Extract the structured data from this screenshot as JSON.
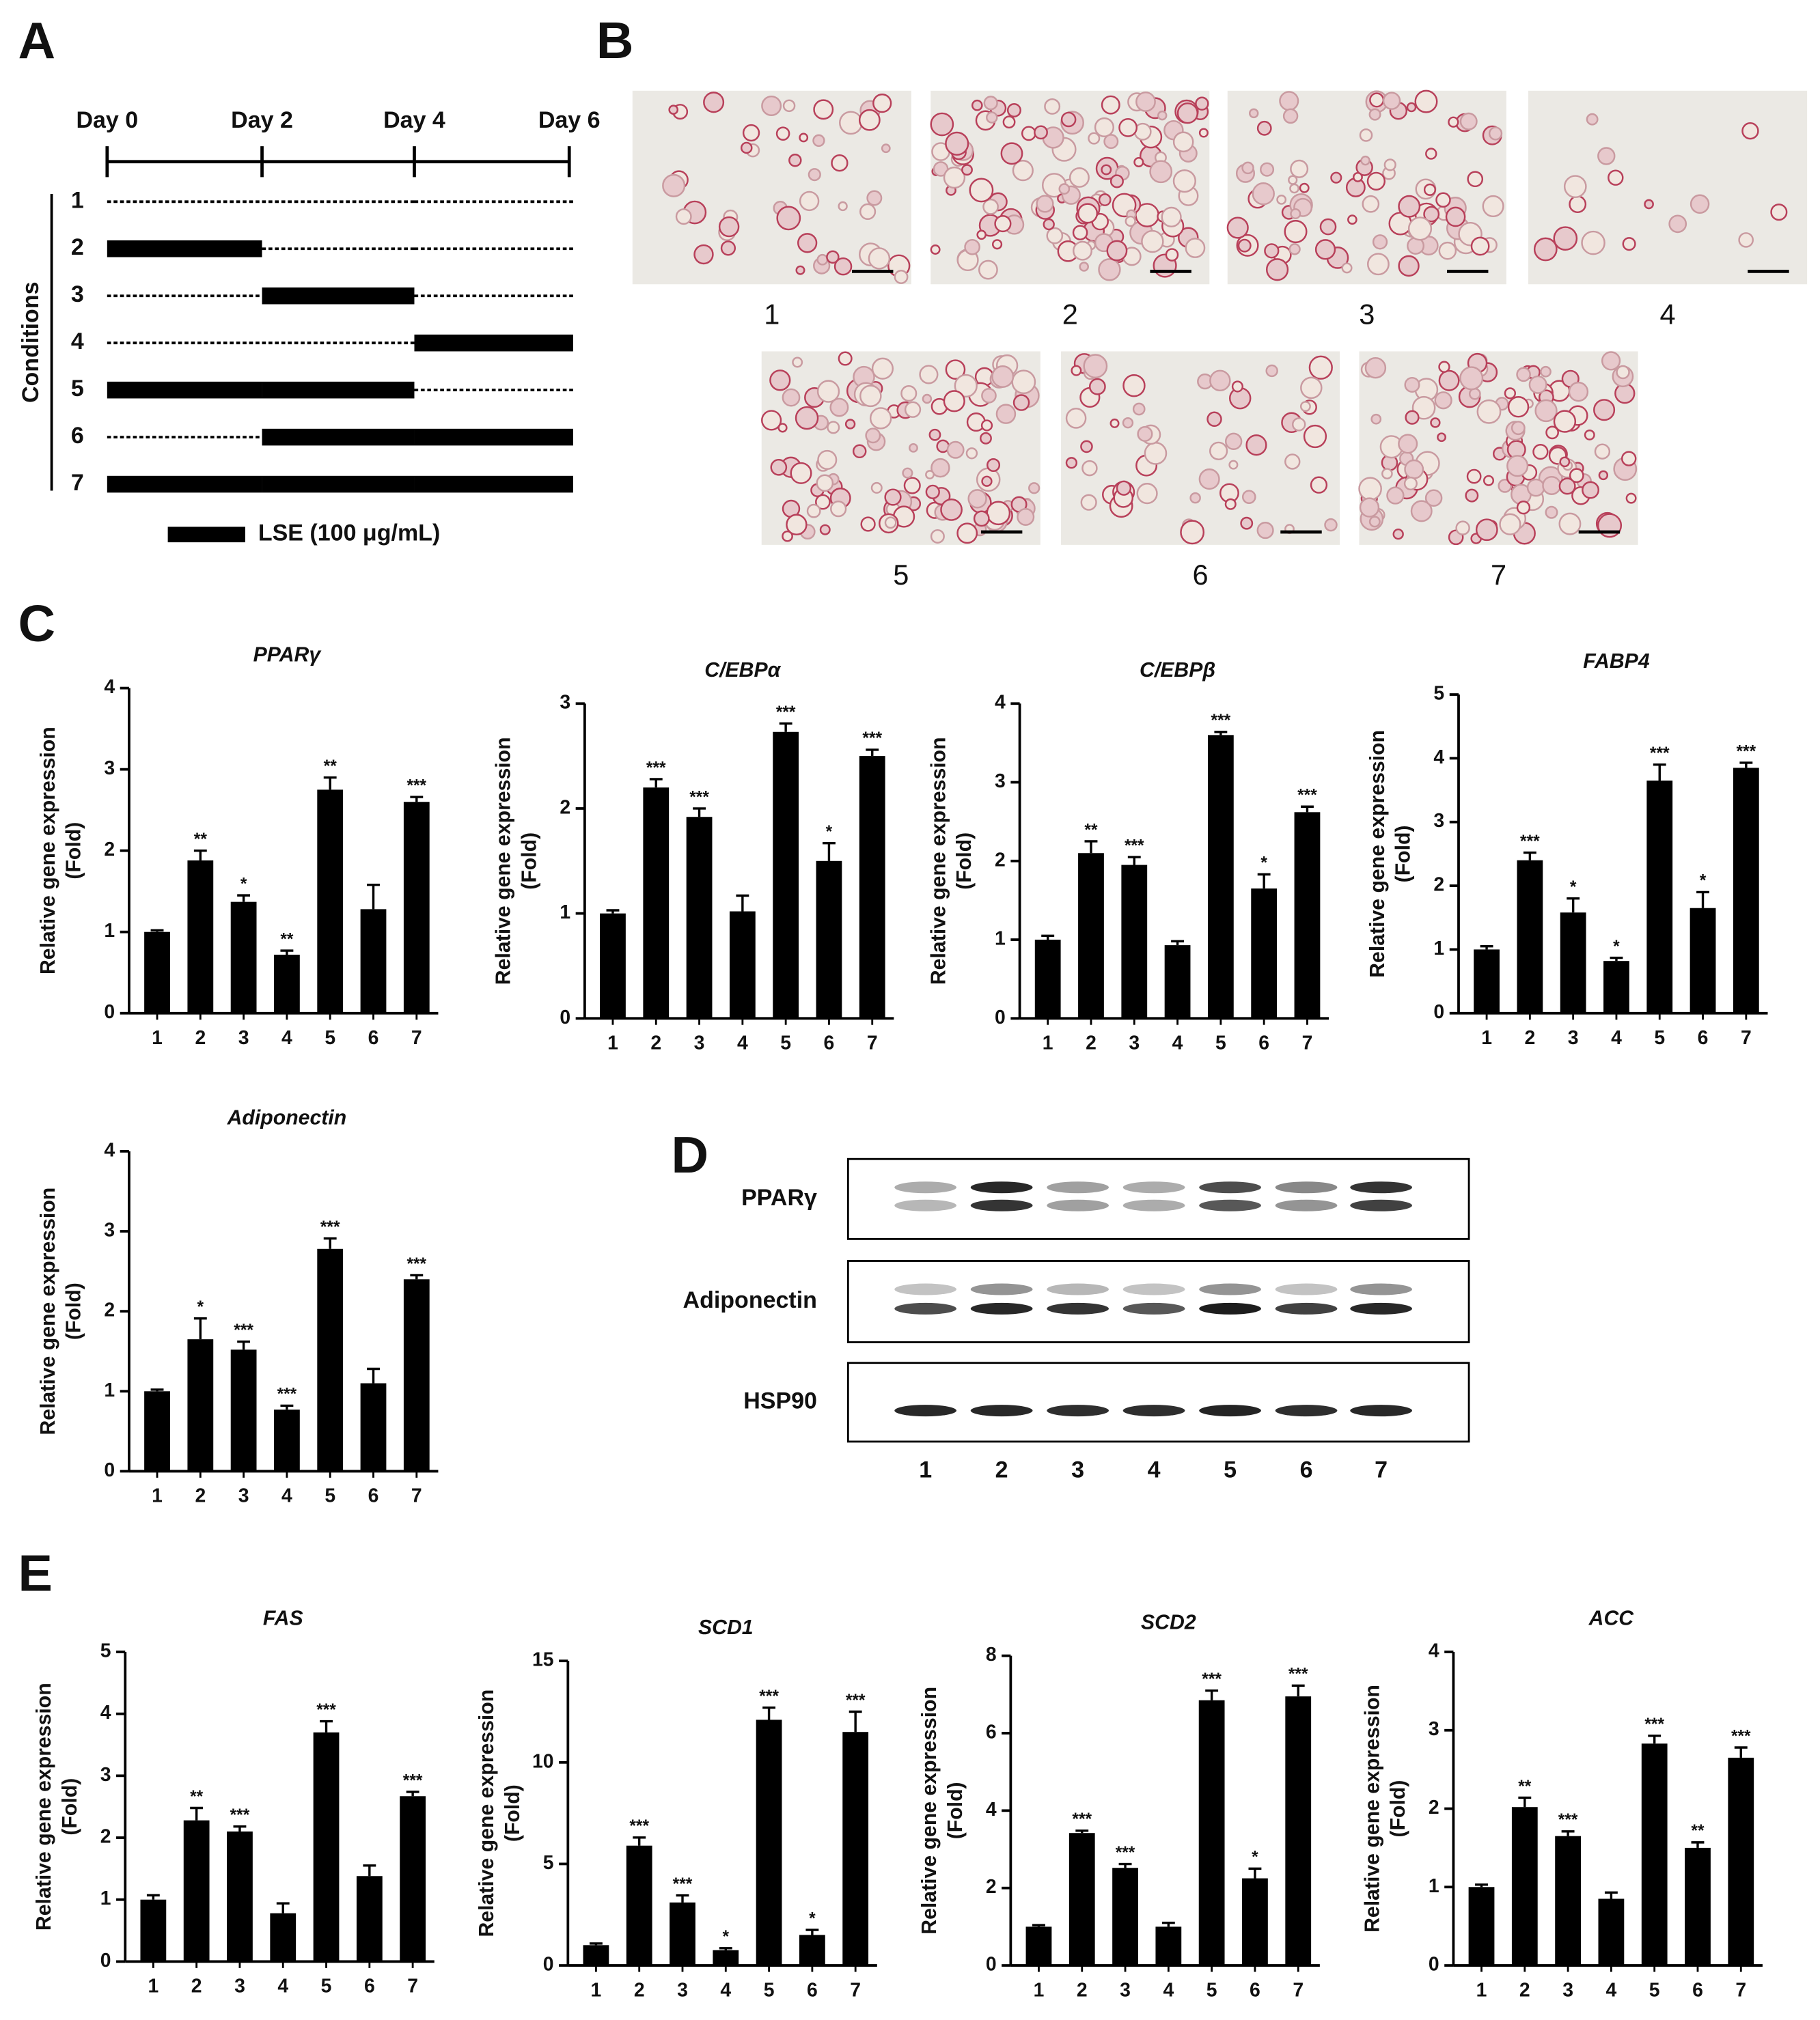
{
  "panel_labels": [
    "A",
    "B",
    "C",
    "D",
    "E"
  ],
  "timeline": {
    "days": [
      "Day 0",
      "Day 2",
      "Day 4",
      "Day 6"
    ],
    "axis_label": "Conditions",
    "conditions": [
      {
        "label": "1",
        "treated": [
          false,
          false,
          false
        ]
      },
      {
        "label": "2",
        "treated": [
          true,
          false,
          false
        ]
      },
      {
        "label": "3",
        "treated": [
          false,
          true,
          false
        ]
      },
      {
        "label": "4",
        "treated": [
          false,
          false,
          true
        ]
      },
      {
        "label": "5",
        "treated": [
          true,
          true,
          false
        ]
      },
      {
        "label": "6",
        "treated": [
          false,
          true,
          true
        ]
      },
      {
        "label": "7",
        "treated": [
          true,
          true,
          true
        ]
      }
    ],
    "legend": "LSE (100 μg/mL)"
  },
  "images": {
    "labels": [
      "1",
      "2",
      "3",
      "4",
      "5",
      "6",
      "7"
    ]
  },
  "blot": {
    "proteins": [
      "PPARγ",
      "Adiponectin",
      "HSP90"
    ],
    "lanes": [
      "1",
      "2",
      "3",
      "4",
      "5",
      "6",
      "7"
    ]
  },
  "chart_data": [
    {
      "type": "bar",
      "title": "PPARγ",
      "ylabel": [
        "Relative gene expression",
        "(Fold)"
      ],
      "categories": [
        "1",
        "2",
        "3",
        "4",
        "5",
        "6",
        "7"
      ],
      "color": "#000000",
      "values": [
        1.0,
        1.88,
        1.37,
        0.72,
        2.75,
        1.28,
        2.6
      ],
      "errors": [
        0.02,
        0.12,
        0.08,
        0.05,
        0.15,
        0.3,
        0.06
      ],
      "annotations": [
        null,
        "**",
        "*",
        "**",
        "**",
        null,
        "***"
      ],
      "ylim": [
        0,
        4
      ],
      "yticks": [
        0,
        1,
        2,
        3,
        4
      ]
    },
    {
      "type": "bar",
      "title": "C/EBPα",
      "ylabel": [
        "Relative gene expression",
        "(Fold)"
      ],
      "categories": [
        "1",
        "2",
        "3",
        "4",
        "5",
        "6",
        "7"
      ],
      "color": "#000000",
      "values": [
        1.0,
        2.2,
        1.92,
        1.02,
        2.73,
        1.5,
        2.5
      ],
      "errors": [
        0.03,
        0.08,
        0.08,
        0.15,
        0.08,
        0.17,
        0.06
      ],
      "annotations": [
        null,
        "***",
        "***",
        null,
        "***",
        "*",
        "***"
      ],
      "ylim": [
        0,
        3
      ],
      "yticks": [
        0,
        1,
        2,
        3
      ]
    },
    {
      "type": "bar",
      "title": "C/EBPβ",
      "ylabel": [
        "Relative gene expression",
        "(Fold)"
      ],
      "categories": [
        "1",
        "2",
        "3",
        "4",
        "5",
        "6",
        "7"
      ],
      "color": "#000000",
      "values": [
        1.0,
        2.1,
        1.95,
        0.93,
        3.6,
        1.65,
        2.62
      ],
      "errors": [
        0.05,
        0.15,
        0.1,
        0.05,
        0.04,
        0.18,
        0.07
      ],
      "annotations": [
        null,
        "**",
        "***",
        null,
        "***",
        "*",
        "***"
      ],
      "ylim": [
        0,
        4
      ],
      "yticks": [
        0,
        1,
        2,
        3,
        4
      ]
    },
    {
      "type": "bar",
      "title": "FABP4",
      "ylabel": [
        "Relative gene expression",
        "(Fold)"
      ],
      "categories": [
        "1",
        "2",
        "3",
        "4",
        "5",
        "6",
        "7"
      ],
      "color": "#000000",
      "values": [
        1.0,
        2.4,
        1.58,
        0.82,
        3.65,
        1.65,
        3.85
      ],
      "errors": [
        0.05,
        0.12,
        0.22,
        0.05,
        0.25,
        0.25,
        0.08
      ],
      "annotations": [
        null,
        "***",
        "*",
        "*",
        "***",
        "*",
        "***"
      ],
      "ylim": [
        0,
        5
      ],
      "yticks": [
        0,
        1,
        2,
        3,
        4,
        5
      ]
    },
    {
      "type": "bar",
      "title": "Adiponectin",
      "ylabel": [
        "Relative gene expression",
        "(Fold)"
      ],
      "categories": [
        "1",
        "2",
        "3",
        "4",
        "5",
        "6",
        "7"
      ],
      "color": "#000000",
      "values": [
        1.0,
        1.65,
        1.52,
        0.77,
        2.78,
        1.1,
        2.4
      ],
      "errors": [
        0.02,
        0.26,
        0.1,
        0.05,
        0.13,
        0.18,
        0.05
      ],
      "annotations": [
        null,
        "*",
        "***",
        "***",
        "***",
        null,
        "***"
      ],
      "ylim": [
        0,
        4
      ],
      "yticks": [
        0,
        1,
        2,
        3,
        4
      ]
    },
    {
      "type": "bar",
      "title": "FAS",
      "ylabel": [
        "Relative gene expression",
        "(Fold)"
      ],
      "categories": [
        "1",
        "2",
        "3",
        "4",
        "5",
        "6",
        "7"
      ],
      "color": "#000000",
      "values": [
        1.0,
        2.28,
        2.1,
        0.78,
        3.7,
        1.38,
        2.67
      ],
      "errors": [
        0.07,
        0.2,
        0.08,
        0.16,
        0.18,
        0.17,
        0.07
      ],
      "annotations": [
        null,
        "**",
        "***",
        null,
        "***",
        null,
        "***"
      ],
      "ylim": [
        0,
        5
      ],
      "yticks": [
        0,
        1,
        2,
        3,
        4,
        5
      ]
    },
    {
      "type": "bar",
      "title": "SCD1",
      "ylabel": [
        "Relative gene expression",
        "(Fold)"
      ],
      "categories": [
        "1",
        "2",
        "3",
        "4",
        "5",
        "6",
        "7"
      ],
      "color": "#000000",
      "values": [
        1.0,
        5.9,
        3.1,
        0.75,
        12.1,
        1.5,
        11.5
      ],
      "errors": [
        0.08,
        0.4,
        0.35,
        0.1,
        0.6,
        0.25,
        1.0
      ],
      "annotations": [
        null,
        "***",
        "***",
        "*",
        "***",
        "*",
        "***"
      ],
      "ylim": [
        0,
        15
      ],
      "yticks": [
        0,
        5,
        10,
        15
      ]
    },
    {
      "type": "bar",
      "title": "SCD2",
      "ylabel": [
        "Relative gene expression",
        "(Fold)"
      ],
      "categories": [
        "1",
        "2",
        "3",
        "4",
        "5",
        "6",
        "7"
      ],
      "color": "#000000",
      "values": [
        1.0,
        3.42,
        2.52,
        1.0,
        6.85,
        2.25,
        6.95
      ],
      "errors": [
        0.04,
        0.06,
        0.1,
        0.1,
        0.25,
        0.25,
        0.28
      ],
      "annotations": [
        null,
        "***",
        "***",
        null,
        "***",
        "*",
        "***"
      ],
      "ylim": [
        0,
        8
      ],
      "yticks": [
        0,
        2,
        4,
        6,
        8
      ]
    },
    {
      "type": "bar",
      "title": "ACC",
      "ylabel": [
        "Relative gene expression",
        "(Fold)"
      ],
      "categories": [
        "1",
        "2",
        "3",
        "4",
        "5",
        "6",
        "7"
      ],
      "color": "#000000",
      "values": [
        1.0,
        2.02,
        1.65,
        0.85,
        2.83,
        1.5,
        2.65
      ],
      "errors": [
        0.03,
        0.12,
        0.06,
        0.08,
        0.1,
        0.07,
        0.13
      ],
      "annotations": [
        null,
        "**",
        "***",
        null,
        "***",
        "**",
        "***"
      ],
      "ylim": [
        0,
        4
      ],
      "yticks": [
        0,
        1,
        2,
        3,
        4
      ]
    }
  ]
}
